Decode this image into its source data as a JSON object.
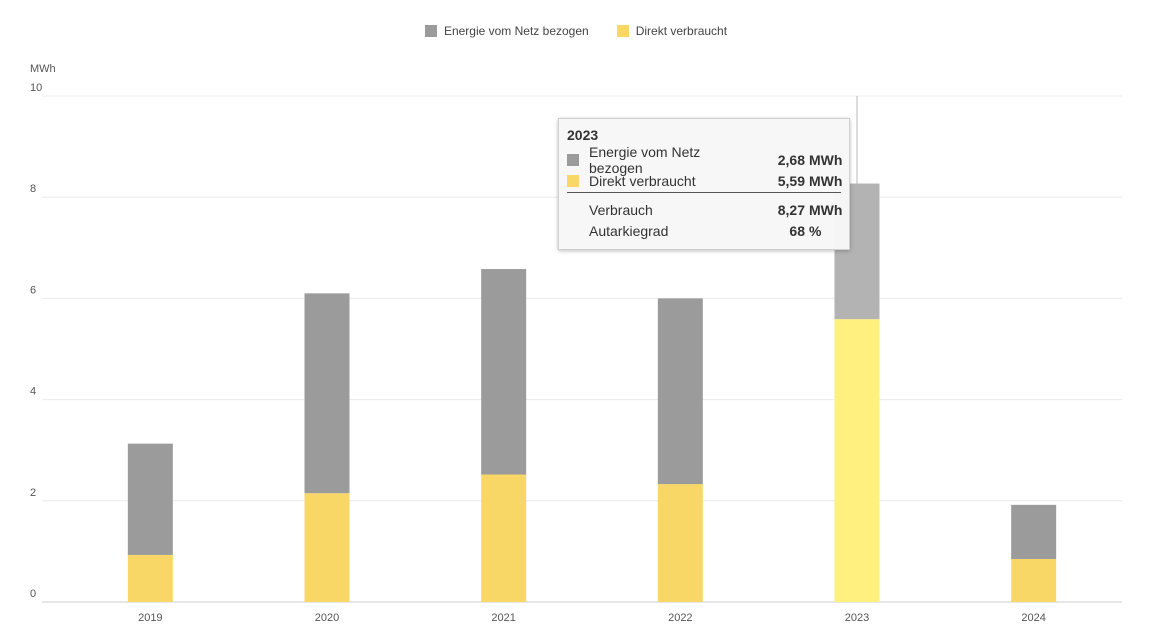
{
  "chart_data": {
    "type": "bar",
    "stacked": true,
    "ylabel": "MWh",
    "ylim": [
      0,
      10
    ],
    "yticks": [
      0,
      2,
      4,
      6,
      8,
      10
    ],
    "categories": [
      "2019",
      "2020",
      "2021",
      "2022",
      "2023",
      "2024"
    ],
    "series": [
      {
        "name": "Direkt verbraucht",
        "color": "#f9d766",
        "values": [
          0.93,
          2.15,
          2.52,
          2.33,
          5.59,
          0.85
        ]
      },
      {
        "name": "Energie vom Netz bezogen",
        "color": "#9b9b9b",
        "values": [
          2.2,
          3.95,
          4.06,
          3.67,
          2.68,
          1.07
        ]
      }
    ],
    "legend": {
      "position": "top-center",
      "items": [
        {
          "label": "Energie vom Netz bezogen",
          "color": "#9b9b9b"
        },
        {
          "label": "Direkt verbraucht",
          "color": "#f9d766"
        }
      ]
    },
    "highlight": {
      "category": "2023",
      "colors": {
        "Direkt verbraucht": "#fff07f",
        "Energie vom Netz bezogen": "#b3b3b3"
      }
    },
    "grid": true
  },
  "tooltip": {
    "title": "2023",
    "rows": [
      {
        "label": "Energie vom Netz bezogen",
        "value": "2,68",
        "unit": "MWh",
        "color": "#9b9b9b"
      },
      {
        "label": "Direkt verbraucht",
        "value": "5,59",
        "unit": "MWh",
        "color": "#f9d766"
      }
    ],
    "summary": [
      {
        "label": "Verbrauch",
        "value": "8,27",
        "unit": "MWh"
      },
      {
        "label": "Autarkiegrad",
        "value": "68",
        "unit": "%"
      }
    ]
  }
}
